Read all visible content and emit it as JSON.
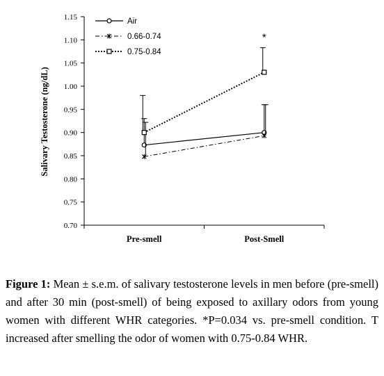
{
  "chart_data": {
    "type": "line",
    "categories": [
      "Pre-smell",
      "Post-Smell"
    ],
    "ylabel": "Salivary Testosterone (ng/dL)",
    "xlabel": "",
    "ylim": [
      0.7,
      1.15
    ],
    "yticks": [
      "0.70",
      "0.75",
      "0.80",
      "0.85",
      "0.90",
      "0.95",
      "1.00",
      "1.05",
      "1.10",
      "1.15"
    ],
    "grid": false,
    "legend_position": "top-left",
    "series": [
      {
        "name": "Air",
        "values": [
          0.873,
          0.9
        ],
        "error_upper": [
          0.93,
          0.96
        ],
        "line_style": "solid",
        "marker": "circle",
        "color": "#000000"
      },
      {
        "name": "0.66-0.74",
        "values": [
          0.848,
          0.893
        ],
        "error_upper": [
          0.922,
          0.96
        ],
        "line_style": "dash-dot",
        "marker": "star",
        "color": "#000000"
      },
      {
        "name": "0.75-0.84",
        "values": [
          0.9,
          1.03
        ],
        "error_upper": [
          0.98,
          1.083
        ],
        "line_style": "dotted",
        "marker": "square",
        "color": "#000000"
      }
    ],
    "annotations": [
      {
        "text": "*",
        "category": "Post-Smell",
        "y": 1.11
      }
    ]
  },
  "caption": {
    "label": "Figure 1:",
    "text": " Mean ± s.e.m. of salivary testosterone levels in men before (pre-smell) and after 30 min (post-smell) of being exposed to axillary odors from young women with different WHR categories. *P=0.034 vs. pre-smell condition. T increased after smelling the odor of women with 0.75-0.84 WHR."
  }
}
